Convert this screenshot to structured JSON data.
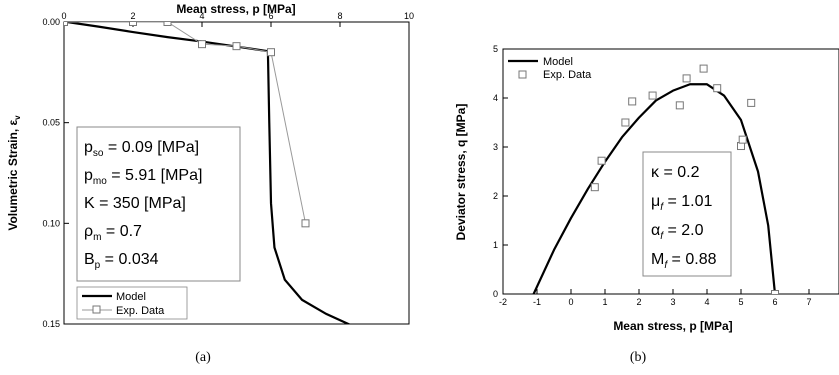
{
  "chart_data": [
    {
      "type": "line",
      "panel_caption": "(a)",
      "xlabel": "Mean stress, p [MPa]",
      "ylabel": "Volumetric Strain, ε",
      "ylabel_sub": "v",
      "x_axis_position": "top",
      "y_inverted": true,
      "xlim": [
        0,
        10
      ],
      "ylim": [
        0,
        0.15
      ],
      "x_ticks": [
        "0",
        "2",
        "4",
        "6",
        "8",
        "10"
      ],
      "y_ticks": [
        "0.00",
        "0.05",
        "0.10",
        "0.15"
      ],
      "series": [
        {
          "name": "Model",
          "x": [
            0.09,
            1,
            2,
            3,
            4,
            5,
            5.91,
            5.95,
            6.0,
            6.1,
            6.4,
            6.9,
            7.6,
            8.5
          ],
          "y": [
            0,
            0.0023,
            0.005,
            0.0075,
            0.0097,
            0.0122,
            0.0145,
            0.05,
            0.09,
            0.112,
            0.128,
            0.138,
            0.145,
            0.152
          ]
        },
        {
          "name": "Exp. Data",
          "x": [
            0,
            2,
            3,
            4,
            5,
            6,
            7
          ],
          "y": [
            0,
            0,
            0,
            0.011,
            0.012,
            0.015,
            0.1
          ]
        }
      ],
      "legend_position": "bottom-left",
      "annotation_lines": [
        {
          "main": "p",
          "sub": "so",
          "rest": " = 0.09 [MPa]"
        },
        {
          "main": "p",
          "sub": "mo",
          "rest": " = 5.91 [MPa]"
        },
        {
          "main": "K",
          "sub": "",
          "rest": "    = 350 [MPa]"
        },
        {
          "main": "ρ",
          "sub": "m",
          "rest": "   = 0.7"
        },
        {
          "main": "B",
          "sub": "p",
          "rest": "   = 0.034"
        }
      ]
    },
    {
      "type": "line",
      "panel_caption": "(b)",
      "xlabel": "Mean stress, p [MPa]",
      "ylabel": "Deviator stress, q [MPa]",
      "xlim": [
        -2,
        8
      ],
      "ylim": [
        0,
        5
      ],
      "x_ticks": [
        "-2",
        "-1",
        "0",
        "1",
        "2",
        "3",
        "4",
        "5",
        "6",
        "7"
      ],
      "y_ticks": [
        "0",
        "1",
        "2",
        "3",
        "4",
        "5"
      ],
      "series": [
        {
          "name": "Model",
          "x": [
            -1.1,
            -0.5,
            0,
            0.5,
            1,
            1.5,
            2,
            2.5,
            3,
            3.5,
            4,
            4.5,
            5,
            5.5,
            5.8,
            6.0
          ],
          "y": [
            0,
            0.9,
            1.55,
            2.15,
            2.7,
            3.2,
            3.6,
            3.95,
            4.15,
            4.28,
            4.28,
            4.05,
            3.55,
            2.5,
            1.4,
            0
          ]
        },
        {
          "name": "Exp. Data",
          "x": [
            0.7,
            0.9,
            1.6,
            1.8,
            2.4,
            3.2,
            3.4,
            3.9,
            4.3,
            5.0,
            5.05,
            5.3,
            6.0
          ],
          "y": [
            2.18,
            2.72,
            3.5,
            3.93,
            4.05,
            3.85,
            4.4,
            4.6,
            4.2,
            3.02,
            3.15,
            3.9,
            0
          ]
        }
      ],
      "legend_position": "top-left",
      "annotation_lines": [
        {
          "main": "κ",
          "sub": "",
          "rest": "  = 0.2"
        },
        {
          "main": "μ",
          "sub": "f",
          "rest": " = 1.01"
        },
        {
          "main": "α",
          "sub": "f",
          "rest": " = 2.0"
        },
        {
          "main": "M",
          "sub": "f",
          "rest": " = 0.88"
        }
      ]
    }
  ]
}
